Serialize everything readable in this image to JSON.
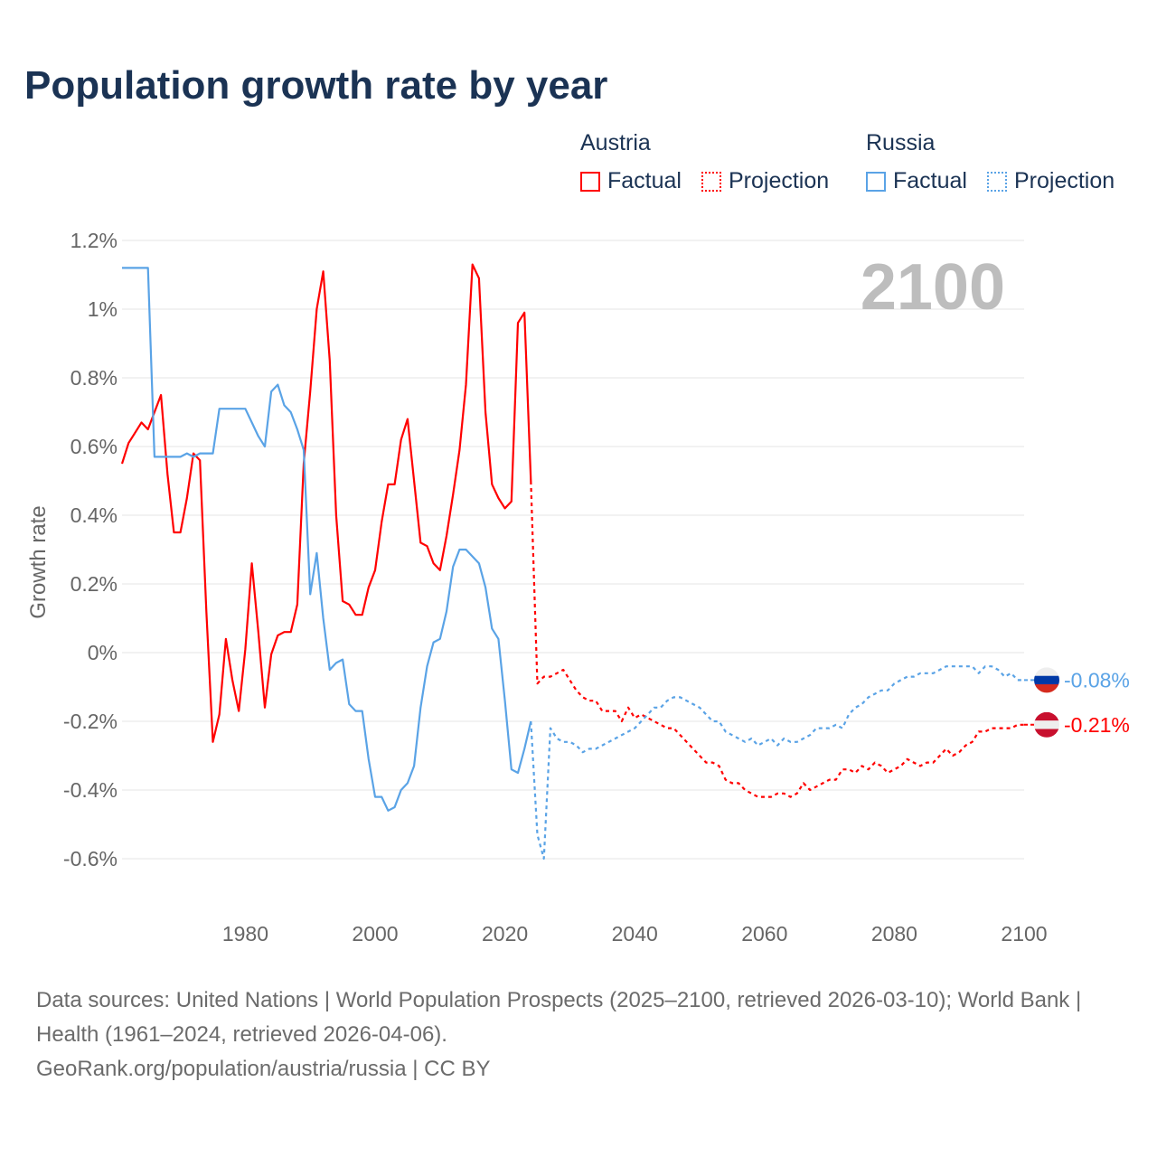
{
  "title": "Population growth rate by year",
  "legend": {
    "groups": [
      {
        "name": "Austria",
        "color": "#ff0000",
        "items": [
          "Factual",
          "Projection"
        ]
      },
      {
        "name": "Russia",
        "color": "#5aa3e6",
        "items": [
          "Factual",
          "Projection"
        ]
      }
    ]
  },
  "footer": {
    "sources": "Data sources: United Nations | World Population Prospects (2025–2100, retrieved 2026-03-10); World Bank | Health (1961–2024, retrieved 2026-04-06).",
    "credit": "GeoRank.org/population/austria/russia | CC BY"
  },
  "chart_data": {
    "type": "line",
    "title": "Population growth rate by year",
    "xlabel": "",
    "ylabel": "Growth rate",
    "year_label": "2100",
    "xlim": [
      1961,
      2100
    ],
    "ylim": [
      -0.7,
      1.2
    ],
    "xticks": [
      1980,
      2000,
      2020,
      2040,
      2060,
      2080,
      2100
    ],
    "yticks": [
      {
        "v": 1.2,
        "label": "1.2%"
      },
      {
        "v": 1.0,
        "label": "1%"
      },
      {
        "v": 0.8,
        "label": "0.8%"
      },
      {
        "v": 0.6,
        "label": "0.6%"
      },
      {
        "v": 0.4,
        "label": "0.4%"
      },
      {
        "v": 0.2,
        "label": "0.2%"
      },
      {
        "v": 0,
        "label": "0%"
      },
      {
        "v": -0.2,
        "label": "-0.2%"
      },
      {
        "v": -0.4,
        "label": "-0.4%"
      },
      {
        "v": -0.6,
        "label": "-0.6%"
      }
    ],
    "grid": true,
    "legend_position": "top-right",
    "end_labels": [
      {
        "series": "Russia",
        "label": "-0.08%",
        "value": -0.08
      },
      {
        "series": "Austria",
        "label": "-0.21%",
        "value": -0.21
      }
    ],
    "series": [
      {
        "name": "Austria Factual",
        "color": "#ff0000",
        "dashed": false,
        "start": 1961,
        "values": [
          0.55,
          0.61,
          0.64,
          0.67,
          0.65,
          0.7,
          0.75,
          0.52,
          0.35,
          0.35,
          0.45,
          0.58,
          0.56,
          0.12,
          -0.26,
          -0.18,
          0.04,
          -0.08,
          -0.17,
          0.01,
          0.26,
          0.06,
          -0.16,
          -0.005,
          0.05,
          0.06,
          0.06,
          0.14,
          0.55,
          0.76,
          1.0,
          1.11,
          0.85,
          0.4,
          0.15,
          0.14,
          0.11,
          0.11,
          0.19,
          0.24,
          0.38,
          0.49,
          0.49,
          0.62,
          0.68,
          0.5,
          0.32,
          0.31,
          0.26,
          0.24,
          0.34,
          0.46,
          0.59,
          0.78,
          1.13,
          1.09,
          0.7,
          0.49,
          0.45,
          0.42,
          0.44,
          0.96,
          0.99,
          0.5
        ]
      },
      {
        "name": "Austria Projection",
        "color": "#ff0000",
        "dashed": true,
        "start": 2024,
        "values": [
          0.5,
          -0.09,
          -0.07,
          -0.07,
          -0.06,
          -0.05,
          -0.08,
          -0.11,
          -0.13,
          -0.14,
          -0.14,
          -0.17,
          -0.17,
          -0.17,
          -0.2,
          -0.16,
          -0.19,
          -0.18,
          -0.19,
          -0.2,
          -0.21,
          -0.22,
          -0.22,
          -0.24,
          -0.26,
          -0.28,
          -0.3,
          -0.32,
          -0.32,
          -0.33,
          -0.37,
          -0.38,
          -0.38,
          -0.4,
          -0.41,
          -0.42,
          -0.42,
          -0.42,
          -0.41,
          -0.41,
          -0.42,
          -0.41,
          -0.38,
          -0.4,
          -0.39,
          -0.38,
          -0.37,
          -0.37,
          -0.34,
          -0.34,
          -0.35,
          -0.33,
          -0.34,
          -0.32,
          -0.33,
          -0.35,
          -0.34,
          -0.33,
          -0.31,
          -0.32,
          -0.33,
          -0.32,
          -0.32,
          -0.3,
          -0.28,
          -0.3,
          -0.29,
          -0.27,
          -0.26,
          -0.23,
          -0.23,
          -0.22,
          -0.22,
          -0.22,
          -0.22,
          -0.21,
          -0.21
        ]
      },
      {
        "name": "Russia Factual",
        "color": "#5aa3e6",
        "dashed": false,
        "start": 1961,
        "values": [
          1.12,
          1.12,
          1.12,
          1.12,
          1.12,
          0.57,
          0.57,
          0.57,
          0.57,
          0.57,
          0.58,
          0.57,
          0.58,
          0.58,
          0.58,
          0.71,
          0.71,
          0.71,
          0.71,
          0.71,
          0.67,
          0.63,
          0.6,
          0.76,
          0.78,
          0.72,
          0.7,
          0.65,
          0.59,
          0.17,
          0.29,
          0.1,
          -0.05,
          -0.03,
          -0.02,
          -0.15,
          -0.17,
          -0.17,
          -0.31,
          -0.42,
          -0.42,
          -0.46,
          -0.45,
          -0.4,
          -0.38,
          -0.33,
          -0.16,
          -0.04,
          0.03,
          0.04,
          0.12,
          0.25,
          0.3,
          0.3,
          0.28,
          0.26,
          0.19,
          0.07,
          0.04,
          -0.14,
          -0.34,
          -0.35,
          -0.28,
          -0.2
        ]
      },
      {
        "name": "Russia Projection",
        "color": "#5aa3e6",
        "dashed": true,
        "start": 2024,
        "values": [
          -0.2,
          -0.53,
          -0.6,
          -0.22,
          -0.25,
          -0.26,
          -0.26,
          -0.27,
          -0.29,
          -0.28,
          -0.28,
          -0.27,
          -0.26,
          -0.25,
          -0.24,
          -0.23,
          -0.22,
          -0.2,
          -0.18,
          -0.16,
          -0.16,
          -0.14,
          -0.13,
          -0.13,
          -0.14,
          -0.15,
          -0.16,
          -0.18,
          -0.2,
          -0.2,
          -0.23,
          -0.24,
          -0.25,
          -0.26,
          -0.25,
          -0.27,
          -0.26,
          -0.25,
          -0.27,
          -0.25,
          -0.26,
          -0.26,
          -0.25,
          -0.24,
          -0.22,
          -0.22,
          -0.22,
          -0.21,
          -0.22,
          -0.18,
          -0.16,
          -0.15,
          -0.13,
          -0.12,
          -0.11,
          -0.11,
          -0.09,
          -0.08,
          -0.07,
          -0.07,
          -0.06,
          -0.06,
          -0.06,
          -0.05,
          -0.04,
          -0.04,
          -0.04,
          -0.04,
          -0.04,
          -0.06,
          -0.04,
          -0.04,
          -0.05,
          -0.07,
          -0.06,
          -0.08,
          -0.08
        ]
      }
    ]
  }
}
